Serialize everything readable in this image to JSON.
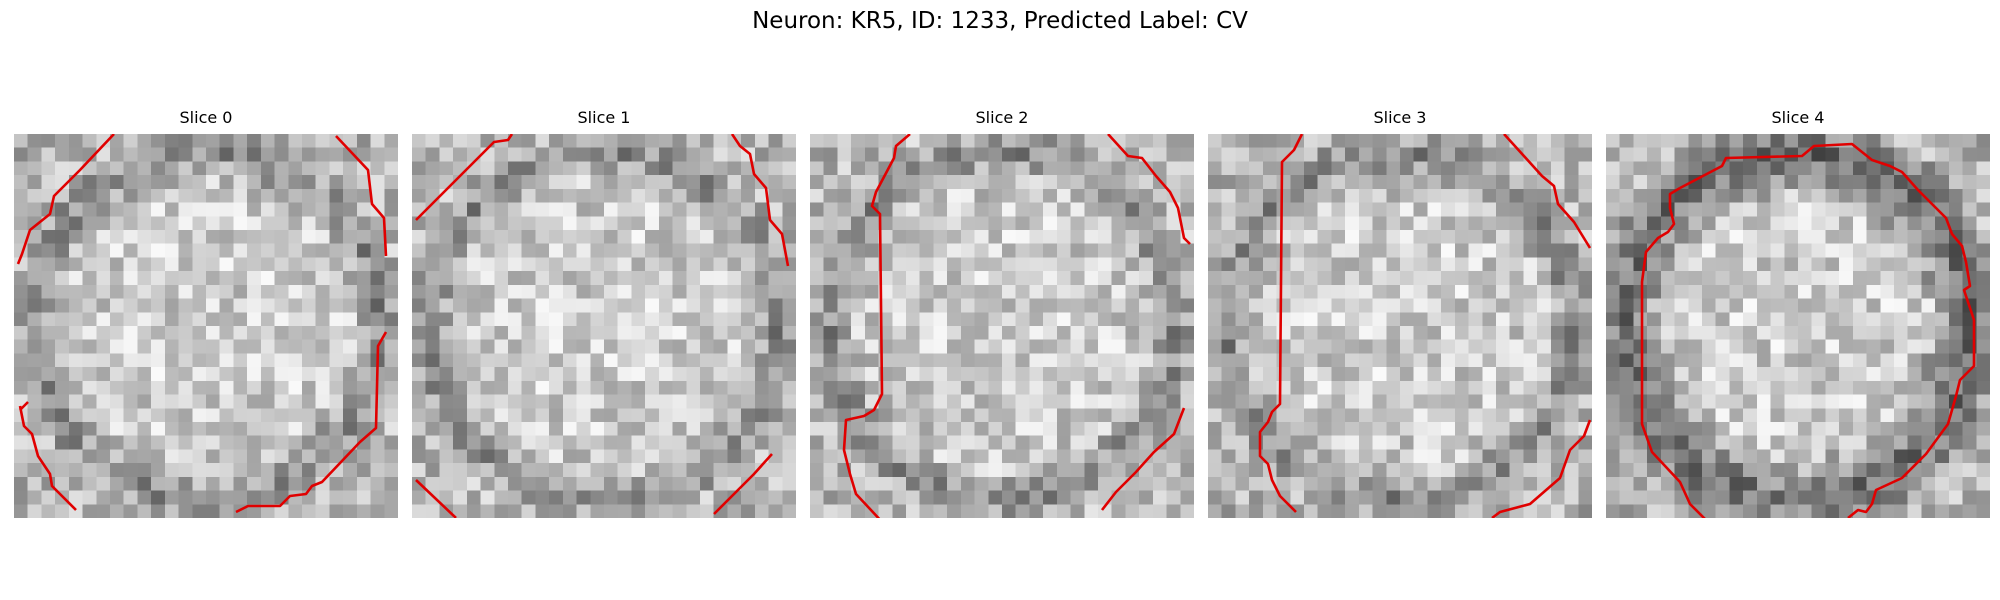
{
  "figure": {
    "title": "Neuron: KR5, ID: 1233, Predicted Label: CV"
  },
  "panels": [
    {
      "title": "Slice 0"
    },
    {
      "title": "Slice 1"
    },
    {
      "title": "Slice 2"
    },
    {
      "title": "Slice 3"
    },
    {
      "title": "Slice 4"
    }
  ],
  "colors": {
    "contour": "#e00000"
  }
}
